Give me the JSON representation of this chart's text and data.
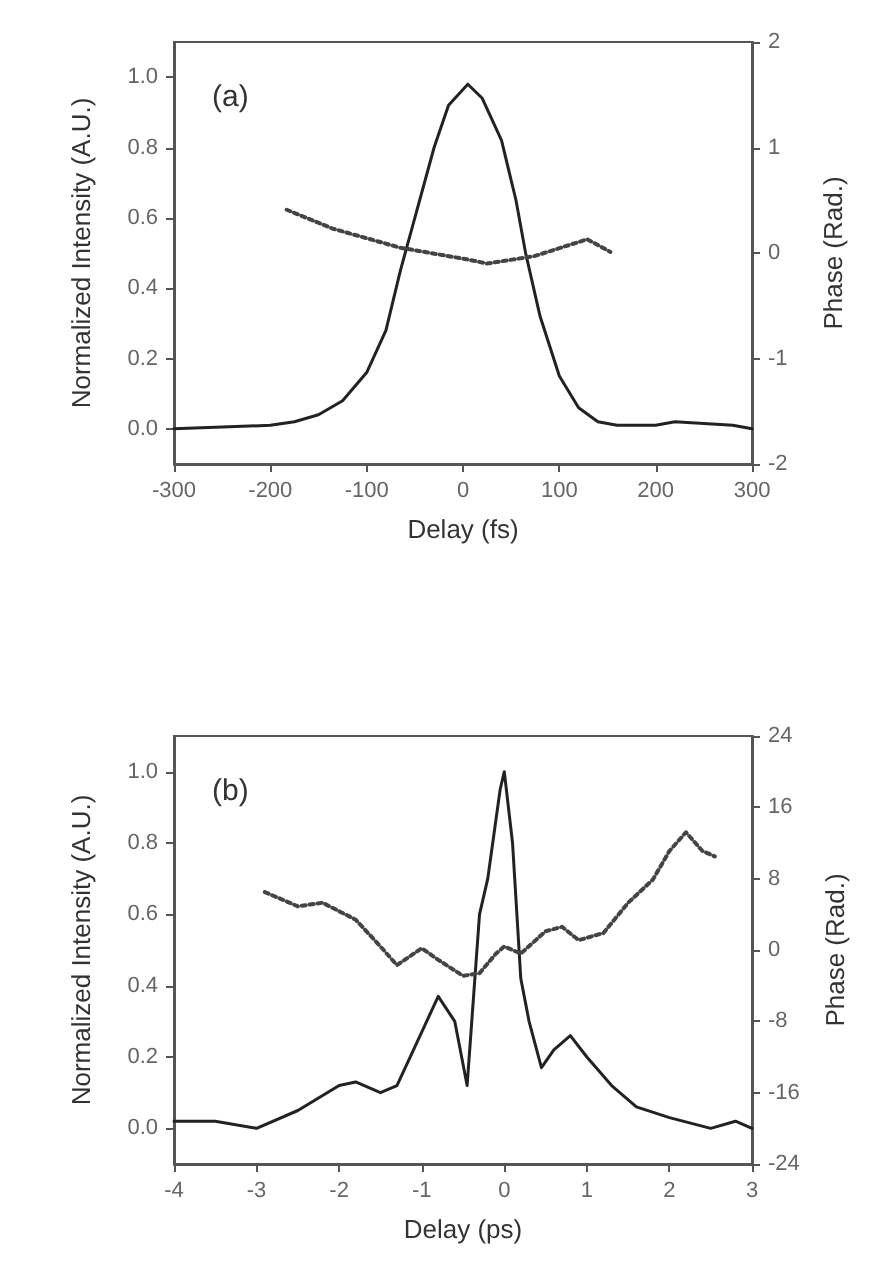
{
  "chart_data": [
    {
      "type": "line",
      "annotations": [
        "(a)"
      ],
      "xlabel": "Delay (fs)",
      "ylabel": "Normalized Intensity (A.U.)",
      "y2label": "Phase (Rad.)",
      "xlim": [
        -300,
        300
      ],
      "xticks": [
        -300,
        -200,
        -100,
        0,
        100,
        200,
        300
      ],
      "ylim": [
        -0.1,
        1.1
      ],
      "yticks": [
        {
          "value": 0,
          "label": "0.0"
        },
        {
          "value": 0.2,
          "label": "0.2"
        },
        {
          "value": 0.4,
          "label": "0.4"
        },
        {
          "value": 0.6,
          "label": "0.6"
        },
        {
          "value": 0.8,
          "label": "0.8"
        },
        {
          "value": 1,
          "label": "1.0"
        }
      ],
      "y2lim": [
        -2,
        2
      ],
      "y2ticks": [
        -2,
        -1,
        0,
        1,
        2
      ],
      "grid": false,
      "series": [
        {
          "color": "#222222",
          "line_style": "solid",
          "x": [
            -300,
            -250,
            -200,
            -175,
            -150,
            -125,
            -100,
            -80,
            -65,
            -50,
            -30,
            -15,
            5,
            20,
            40,
            55,
            65,
            80,
            100,
            120,
            140,
            160,
            200,
            220,
            250,
            280,
            300
          ],
          "values": [
            0.0,
            0.005,
            0.01,
            0.02,
            0.04,
            0.08,
            0.16,
            0.28,
            0.45,
            0.6,
            0.8,
            0.92,
            0.98,
            0.94,
            0.82,
            0.65,
            0.5,
            0.32,
            0.15,
            0.06,
            0.02,
            0.01,
            0.01,
            0.02,
            0.015,
            0.01,
            0.0
          ]
        },
        {
          "color": "#444444",
          "line_style": "dotted",
          "axis": "y2",
          "x": [
            -183,
            -135,
            -65,
            4,
            25,
            74,
            129,
            153
          ],
          "values": [
            0.41,
            0.23,
            0.05,
            -0.06,
            -0.1,
            -0.03,
            0.13,
            0.01
          ]
        }
      ]
    },
    {
      "type": "line",
      "annotations": [
        "(b)"
      ],
      "xlabel": "Delay (ps)",
      "ylabel": "Normalized Intensity (A.U.)",
      "y2label": "Phase (Rad.)",
      "xlim": [
        -4,
        3
      ],
      "xticks": [
        -4,
        -3,
        -2,
        -1,
        0,
        1,
        2,
        3
      ],
      "ylim": [
        -0.1,
        1.1
      ],
      "yticks": [
        {
          "value": 0,
          "label": "0.0"
        },
        {
          "value": 0.2,
          "label": "0.2"
        },
        {
          "value": 0.4,
          "label": "0.4"
        },
        {
          "value": 0.6,
          "label": "0.6"
        },
        {
          "value": 0.8,
          "label": "0.8"
        },
        {
          "value": 1,
          "label": "1.0"
        }
      ],
      "y2lim": [
        -24,
        24
      ],
      "y2ticks": [
        -24,
        -16,
        -8,
        0,
        8,
        16,
        24
      ],
      "grid": false,
      "series": [
        {
          "color": "#222222",
          "line_style": "solid",
          "x": [
            -4,
            -3.5,
            -3,
            -2.5,
            -2,
            -1.8,
            -1.5,
            -1.3,
            -1,
            -0.8,
            -0.6,
            -0.45,
            -0.3,
            -0.2,
            -0.05,
            0,
            0.1,
            0.2,
            0.3,
            0.45,
            0.6,
            0.8,
            1,
            1.3,
            1.6,
            2,
            2.5,
            2.8,
            3
          ],
          "values": [
            0.02,
            0.02,
            0.0,
            0.05,
            0.12,
            0.13,
            0.1,
            0.12,
            0.27,
            0.37,
            0.3,
            0.12,
            0.6,
            0.7,
            0.95,
            1.0,
            0.8,
            0.42,
            0.3,
            0.17,
            0.22,
            0.26,
            0.2,
            0.12,
            0.06,
            0.03,
            0.0,
            0.02,
            0.0
          ]
        },
        {
          "color": "#444444",
          "line_style": "dotted",
          "axis": "y2",
          "x": [
            -2.9,
            -2.5,
            -2.2,
            -1.8,
            -1.5,
            -1.3,
            -1,
            -0.8,
            -0.5,
            -0.3,
            -0.1,
            0,
            0.2,
            0.5,
            0.7,
            0.9,
            1.2,
            1.5,
            1.8,
            2,
            2.2,
            2.4,
            2.55
          ],
          "values": [
            6.5,
            4.9,
            5.3,
            3.4,
            0.4,
            -1.7,
            0.2,
            -1.1,
            -2.9,
            -2.6,
            -0.4,
            0.4,
            -0.4,
            2.1,
            2.6,
            1.1,
            1.9,
            5.3,
            7.9,
            11.1,
            13.2,
            11.1,
            10.5
          ]
        }
      ]
    }
  ]
}
